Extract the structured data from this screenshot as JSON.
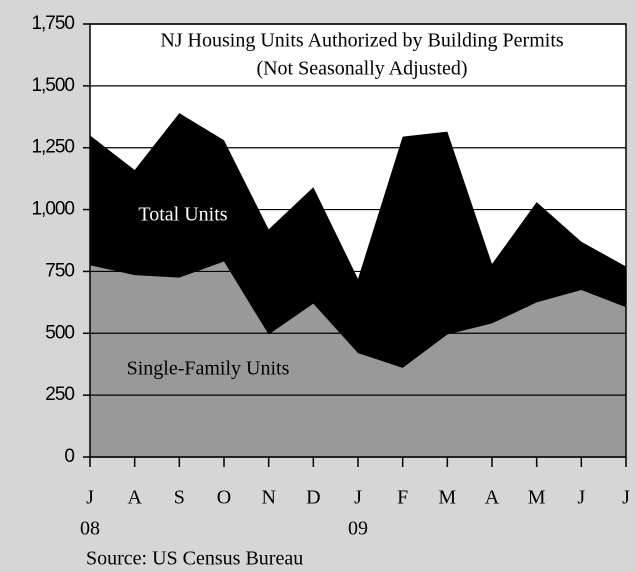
{
  "chart_data": {
    "type": "area",
    "title": "NJ Housing Units Authorized by Building Permits",
    "subtitle": "(Not Seasonally Adjusted)",
    "source": "Source: US Census Bureau",
    "categories": [
      "J",
      "A",
      "S",
      "O",
      "N",
      "D",
      "J",
      "F",
      "M",
      "A",
      "M",
      "J",
      "J"
    ],
    "category_groups": [
      "08",
      null,
      null,
      null,
      null,
      null,
      "09",
      null,
      null,
      null,
      null,
      null,
      null
    ],
    "series": [
      {
        "name": "Total Units",
        "color": "#000000",
        "label_color": "#ffffff",
        "values": [
          1300,
          1160,
          1390,
          1280,
          920,
          1090,
          720,
          1295,
          1315,
          780,
          1030,
          870,
          770
        ]
      },
      {
        "name": "Single-Family Units",
        "color": "#999999",
        "label_color": "#000000",
        "values": [
          775,
          735,
          725,
          790,
          495,
          620,
          420,
          360,
          495,
          540,
          625,
          675,
          605
        ]
      }
    ],
    "ylim": [
      0,
      1750
    ],
    "yticks": [
      0,
      250,
      500,
      750,
      {
        "value": 1000,
        "label": "1,000"
      },
      {
        "value": 1250,
        "label": "1,250"
      },
      {
        "value": 1500,
        "label": "1,500"
      },
      {
        "value": 1750,
        "label": "1,750"
      }
    ],
    "grid": true
  }
}
